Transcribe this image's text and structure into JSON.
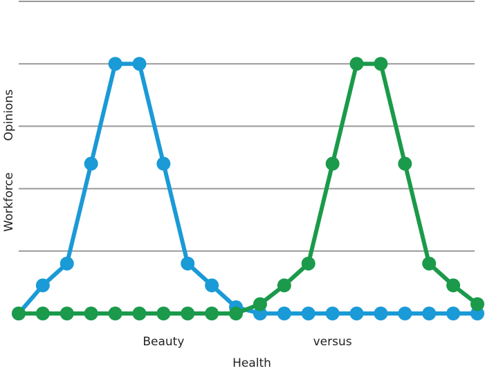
{
  "chart_data": {
    "type": "line",
    "x_label": "Health",
    "y_label": "Workforce Opinions",
    "categories": [
      null,
      null,
      null,
      null,
      null,
      null,
      "Beauty",
      null,
      null,
      null,
      null,
      null,
      null,
      "versus",
      null,
      null,
      null,
      null,
      null,
      null
    ],
    "series": [
      {
        "name": "Beauty",
        "color": "#1a9ad6",
        "values": [
          0,
          0.45,
          0.8,
          2.4,
          4,
          4,
          2.4,
          0.8,
          0.45,
          0.1,
          0,
          0,
          0,
          0,
          0,
          0,
          0,
          0,
          0,
          0
        ]
      },
      {
        "name": "versus",
        "color": "#1a9a4a",
        "values": [
          0,
          0,
          0,
          0,
          0,
          0,
          0,
          0,
          0,
          0,
          0.15,
          0.45,
          0.8,
          2.4,
          4,
          4,
          2.4,
          0.8,
          0.45,
          0.15
        ]
      }
    ],
    "ylim": [
      0,
      5
    ],
    "yticks": [
      1,
      2,
      3,
      4,
      5
    ],
    "grid": true
  }
}
